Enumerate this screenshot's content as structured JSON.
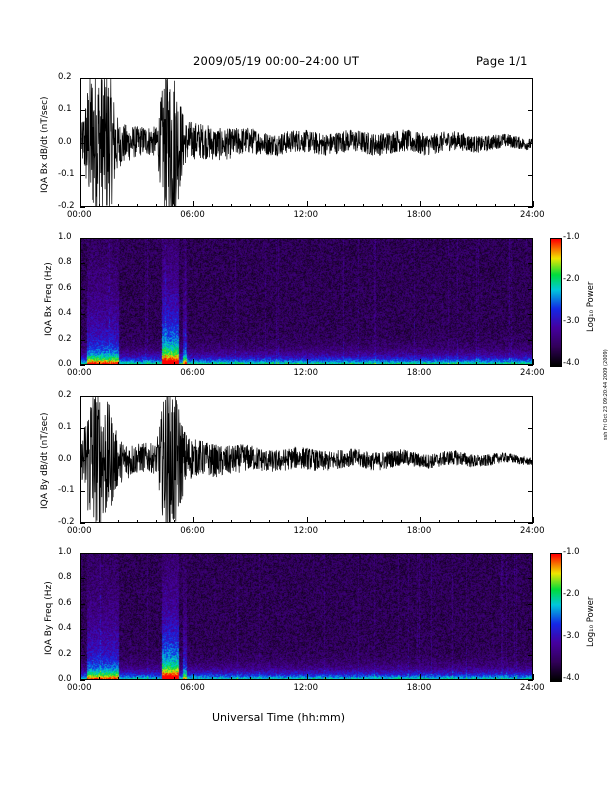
{
  "header": {
    "title": "2009/05/19  00:00–24:00 UT",
    "page": "Page 1/1"
  },
  "xlabel": "Universal Time (hh:mm)",
  "side_stamp": "ssh Fri Oct 23 09:20:44 2009 (2009)",
  "chart_data": [
    {
      "type": "line",
      "ylabel": "IQA Bx dB/dt (nT/sec)",
      "xlim": [
        "00:00",
        "24:00"
      ],
      "xticks": [
        "00:00",
        "06:00",
        "12:00",
        "18:00",
        "24:00"
      ],
      "ylim": [
        -0.2,
        0.2
      ],
      "yticks": [
        "-0.2",
        "-0.1",
        "0.0",
        "0.1",
        "0.2"
      ],
      "series": [
        {
          "x_hours": [
            0,
            0.5,
            1.0,
            1.5,
            2.0,
            3.0,
            4.0,
            4.5,
            5.0,
            5.5,
            6.0,
            8.0,
            10.0,
            12.0,
            14.0,
            16.0,
            18.0,
            20.0,
            22.0,
            24.0
          ],
          "amplitude": [
            0.04,
            0.2,
            0.2,
            0.2,
            0.06,
            0.04,
            0.04,
            0.2,
            0.2,
            0.06,
            0.05,
            0.04,
            0.03,
            0.03,
            0.03,
            0.03,
            0.03,
            0.025,
            0.02,
            0.015
          ]
        }
      ]
    },
    {
      "type": "heatmap",
      "ylabel": "IQA Bx Freq (Hz)",
      "xlim": [
        "00:00",
        "24:00"
      ],
      "xticks": [
        "00:00",
        "06:00",
        "12:00",
        "18:00",
        "24:00"
      ],
      "ylim": [
        0.0,
        1.0
      ],
      "yticks": [
        "0.0",
        "0.2",
        "0.4",
        "0.6",
        "0.8",
        "1.0"
      ],
      "colorbar": {
        "label": "Log₁₀ Power",
        "range": [
          -4.0,
          -1.0
        ],
        "ticks": [
          "-1.0",
          "-2.0",
          "-3.0",
          "-4.0"
        ]
      }
    },
    {
      "type": "line",
      "ylabel": "IQA By dB/dt (nT/sec)",
      "xlim": [
        "00:00",
        "24:00"
      ],
      "xticks": [
        "00:00",
        "06:00",
        "12:00",
        "18:00",
        "24:00"
      ],
      "ylim": [
        -0.2,
        0.2
      ],
      "yticks": [
        "-0.2",
        "-0.1",
        "0.0",
        "0.1",
        "0.2"
      ],
      "series": [
        {
          "x_hours": [
            0,
            0.5,
            1.0,
            1.5,
            2.0,
            3.0,
            4.0,
            4.5,
            5.0,
            5.5,
            6.0,
            8.0,
            10.0,
            12.0,
            14.0,
            16.0,
            18.0,
            20.0,
            22.0,
            24.0
          ],
          "amplitude": [
            0.04,
            0.2,
            0.2,
            0.15,
            0.06,
            0.04,
            0.04,
            0.2,
            0.2,
            0.08,
            0.05,
            0.04,
            0.03,
            0.03,
            0.025,
            0.025,
            0.02,
            0.02,
            0.015,
            0.01
          ]
        }
      ]
    },
    {
      "type": "heatmap",
      "ylabel": "IQA By Freq (Hz)",
      "xlim": [
        "00:00",
        "24:00"
      ],
      "xticks": [
        "00:00",
        "06:00",
        "12:00",
        "18:00",
        "24:00"
      ],
      "ylim": [
        0.0,
        1.0
      ],
      "yticks": [
        "0.0",
        "0.2",
        "0.4",
        "0.6",
        "0.8",
        "1.0"
      ],
      "colorbar": {
        "label": "Log₁₀ Power",
        "range": [
          -4.0,
          -1.0
        ],
        "ticks": [
          "-1.0",
          "-2.0",
          "-3.0",
          "-4.0"
        ]
      }
    }
  ]
}
